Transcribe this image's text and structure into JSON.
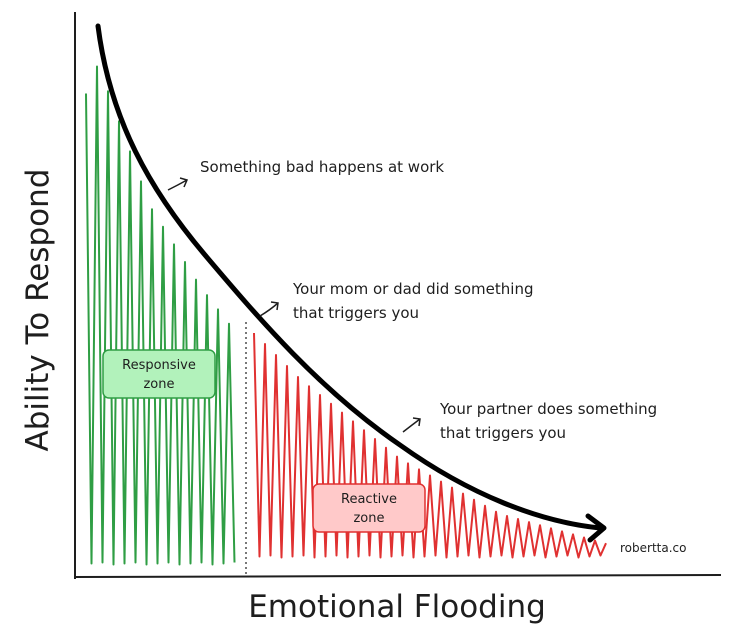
{
  "axes": {
    "y_label": "Ability To Respond",
    "x_label": "Emotional Flooding"
  },
  "annotations": [
    {
      "lines": [
        "Something bad happens at work"
      ]
    },
    {
      "lines": [
        "Your mom or dad did something",
        "that triggers you"
      ]
    },
    {
      "lines": [
        "Your partner does something",
        "that triggers you"
      ]
    }
  ],
  "zones": [
    {
      "lines": [
        "Responsive",
        "zone"
      ]
    },
    {
      "lines": [
        "Reactive",
        "zone"
      ]
    }
  ],
  "credit": "robertta.co"
}
